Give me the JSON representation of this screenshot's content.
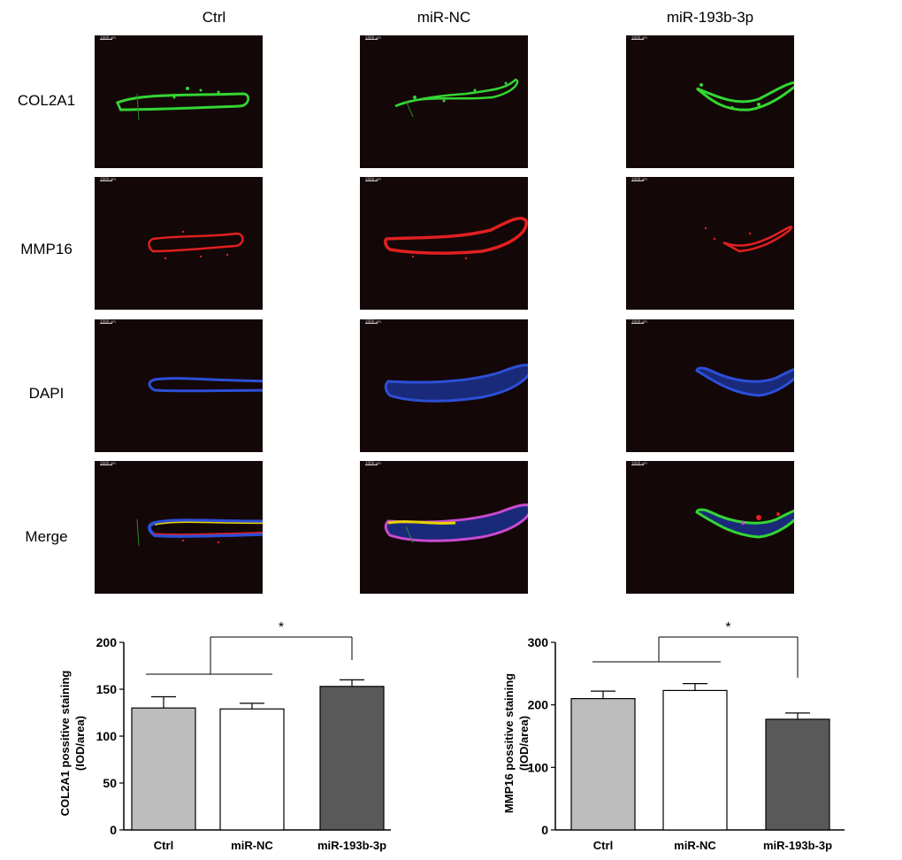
{
  "columns": [
    "Ctrl",
    "miR-NC",
    "miR-193b-3p"
  ],
  "rows": [
    "COL2A1",
    "MMP16",
    "DAPI",
    "Merge"
  ],
  "scale_bar_label": "1000 μm",
  "colors": {
    "panel_bg": "#140707",
    "col2a1": "#33d633",
    "mmp16": "#e02020",
    "dapi": "#2c4fd8",
    "merge_yellow": "#e6d400",
    "bar_ctrl": "#bdbdbd",
    "bar_nc": "#ffffff",
    "bar_mir": "#595959"
  },
  "chart_data": [
    {
      "type": "bar",
      "categories": [
        "Ctrl",
        "miR-NC",
        "miR-193b-3p"
      ],
      "values": [
        130,
        129,
        153
      ],
      "errors": [
        12,
        6,
        7
      ],
      "ylabel": "COL2A1 possitive staining\n(IOD/area)",
      "ylim": [
        0,
        200
      ],
      "yticks": [
        0,
        50,
        100,
        150,
        200
      ],
      "significance": "*",
      "comparison": "Ctrl + miR-NC vs miR-193b-3p"
    },
    {
      "type": "bar",
      "categories": [
        "Ctrl",
        "miR-NC",
        "miR-193b-3p"
      ],
      "values": [
        210,
        223,
        177
      ],
      "errors": [
        12,
        11,
        10
      ],
      "ylabel": "MMP16 possitive staining\n(IOD/area)",
      "ylim": [
        0,
        300
      ],
      "yticks": [
        0,
        100,
        200,
        300
      ],
      "significance": "*",
      "comparison": "Ctrl + miR-NC vs miR-193b-3p"
    }
  ]
}
